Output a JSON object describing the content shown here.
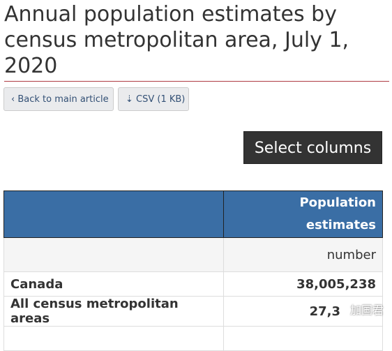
{
  "header": {
    "title": "Annual population estimates by census metropolitan area, July 1, 2020"
  },
  "buttons": {
    "back": "Back to main article",
    "csv": "CSV (1 KB)",
    "select": "Select columns"
  },
  "table": {
    "columns": [
      "",
      "Population estimates"
    ],
    "rows": [
      [
        "",
        "number"
      ],
      [
        "Canada",
        "38,005,238"
      ],
      [
        "All census metropolitan areas",
        "27,3"
      ]
    ]
  },
  "watermark": "加国君"
}
